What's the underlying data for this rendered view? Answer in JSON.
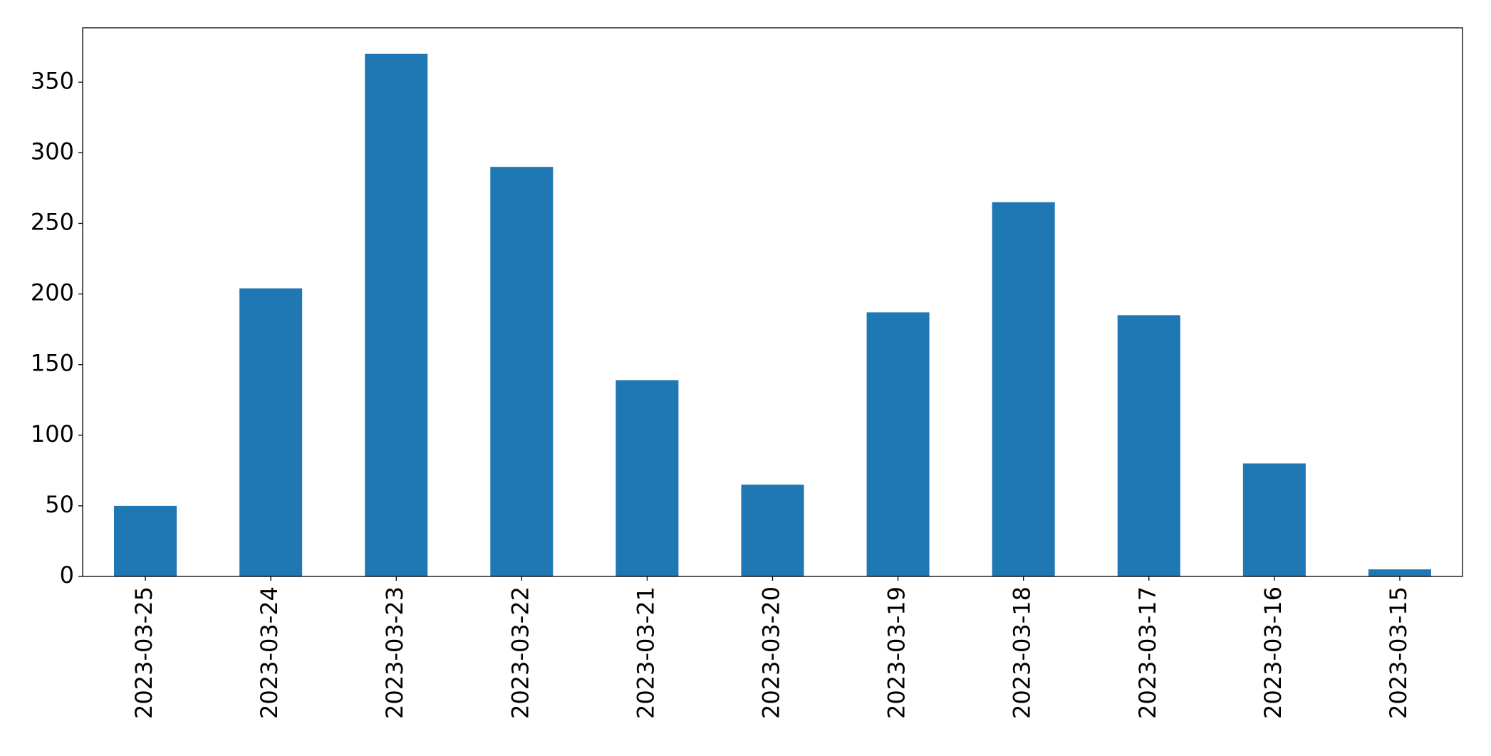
{
  "chart_data": {
    "type": "bar",
    "categories": [
      "2023-03-25",
      "2023-03-24",
      "2023-03-23",
      "2023-03-22",
      "2023-03-21",
      "2023-03-20",
      "2023-03-19",
      "2023-03-18",
      "2023-03-17",
      "2023-03-16",
      "2023-03-15"
    ],
    "values": [
      50,
      204,
      370,
      290,
      139,
      65,
      187,
      265,
      185,
      80,
      5
    ],
    "color": "#1f77b4",
    "ylim": [
      0,
      388.5
    ],
    "yticks": [
      0,
      50,
      100,
      150,
      200,
      250,
      300,
      350
    ],
    "grid": false
  }
}
